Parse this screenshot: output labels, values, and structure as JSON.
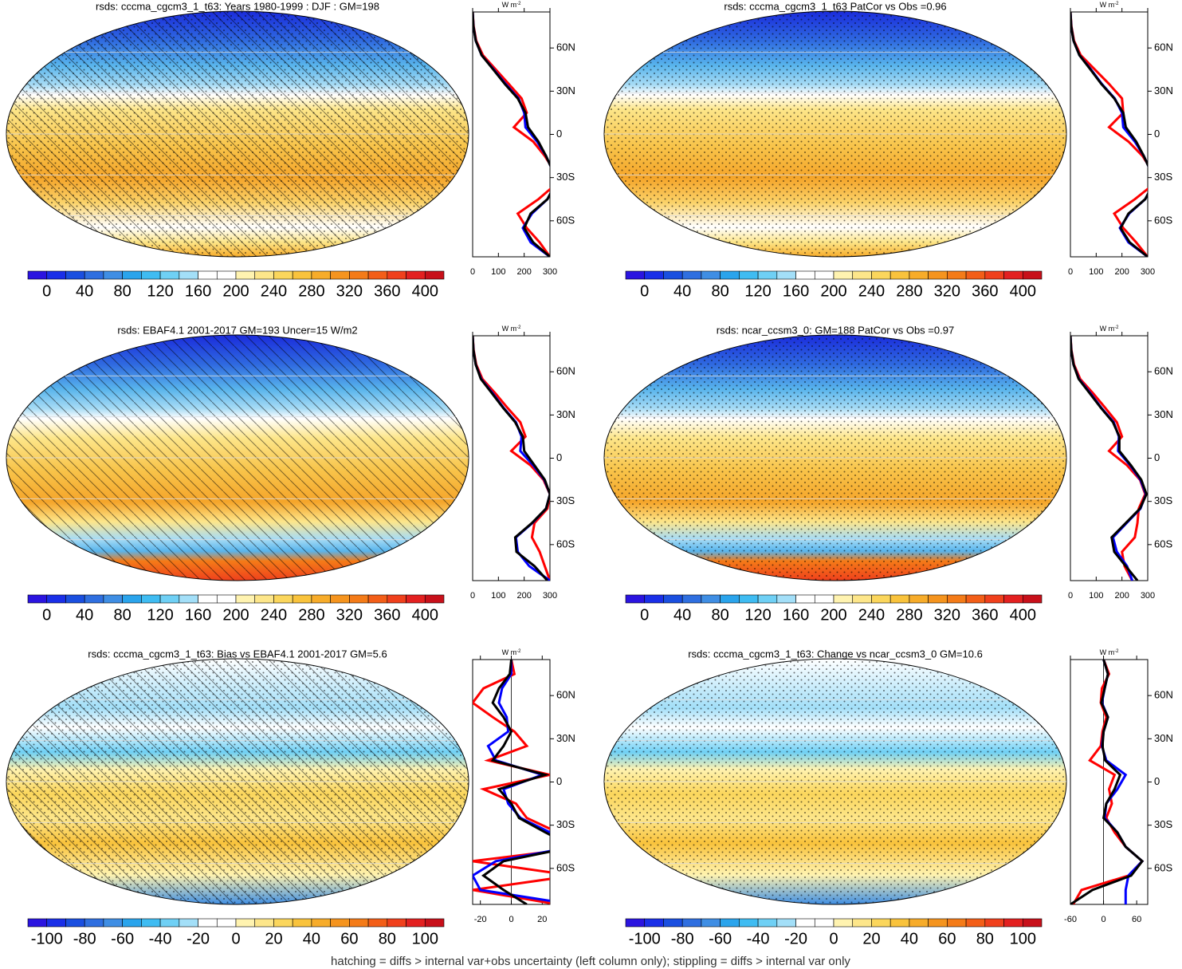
{
  "palette": [
    "#2b14e0",
    "#1a2fe8",
    "#1a4fe0",
    "#2f6fe0",
    "#3f8ee4",
    "#2aa4ec",
    "#3fbcf2",
    "#6fd0f5",
    "#a3dff8",
    "#ffffff",
    "#ffffff",
    "#fff3b0",
    "#fde68a",
    "#fbd65c",
    "#f9c33c",
    "#f7ac2a",
    "#f5941e",
    "#f47b18",
    "#f35e18",
    "#f0401c",
    "#e32020",
    "#c8101a"
  ],
  "footer": "hatching = diffs > internal var+obs uncertainty (left column only); stippling = diffs > internal var only",
  "chart_data": [
    {
      "type": "map-profile",
      "title": "rsds: cccma_cgcm3_1_t63: Years 1980-1999 : DJF : GM=198",
      "clim": [
        -20,
        420
      ],
      "cticks": [
        0,
        40,
        80,
        120,
        160,
        200,
        240,
        280,
        320,
        360,
        400
      ],
      "unit": "W m",
      "unit_power": "-2",
      "xlim": [
        0,
        300
      ],
      "xticks": [
        0,
        100,
        200,
        300
      ],
      "ylim": [
        -85,
        85
      ],
      "yticks": [
        {
          "value": 60,
          "label": "60N"
        },
        {
          "value": 30,
          "label": "30N"
        },
        0,
        {
          "value": -30,
          "label": "30S"
        },
        {
          "value": -60,
          "label": "60S"
        }
      ],
      "lat": [
        85,
        75,
        65,
        55,
        45,
        35,
        25,
        15,
        5,
        -5,
        -15,
        -25,
        -35,
        -45,
        -55,
        -65,
        -75,
        -85
      ],
      "series": [
        {
          "color": "#ff0000",
          "values": [
            0,
            4,
            14,
            40,
            90,
            140,
            190,
            210,
            160,
            235,
            280,
            315,
            320,
            255,
            175,
            210,
            260,
            300
          ]
        },
        {
          "color": "#0000ff",
          "values": [
            0,
            3,
            12,
            35,
            82,
            128,
            178,
            200,
            205,
            250,
            285,
            310,
            320,
            290,
            230,
            195,
            225,
            300
          ]
        },
        {
          "color": "#000000",
          "values": [
            0,
            3,
            12,
            35,
            80,
            125,
            175,
            205,
            215,
            255,
            285,
            310,
            320,
            290,
            225,
            200,
            235,
            300
          ]
        }
      ]
    },
    {
      "type": "map-profile",
      "title": "rsds: cccma_cgcm3_1_t63 PatCor vs Obs =0.96",
      "clim": [
        -20,
        420
      ],
      "cticks": [
        0,
        40,
        80,
        120,
        160,
        200,
        240,
        280,
        320,
        360,
        400
      ],
      "unit": "W m",
      "unit_power": "-2",
      "xlim": [
        0,
        300
      ],
      "xticks": [
        0,
        100,
        200,
        300
      ],
      "ylim": [
        -85,
        85
      ],
      "yticks": [
        {
          "value": 60,
          "label": "60N"
        },
        {
          "value": 30,
          "label": "30N"
        },
        0,
        {
          "value": -30,
          "label": "30S"
        },
        {
          "value": -60,
          "label": "60S"
        }
      ],
      "lat": [
        85,
        75,
        65,
        55,
        45,
        35,
        25,
        15,
        5,
        -5,
        -15,
        -25,
        -35,
        -45,
        -55,
        -65,
        -75,
        -85
      ],
      "series": [
        {
          "color": "#ff0000",
          "values": [
            0,
            4,
            14,
            40,
            95,
            150,
            200,
            205,
            150,
            225,
            280,
            315,
            320,
            250,
            170,
            205,
            255,
            300
          ]
        },
        {
          "color": "#0000ff",
          "values": [
            0,
            3,
            12,
            35,
            80,
            122,
            172,
            200,
            205,
            250,
            285,
            310,
            320,
            290,
            228,
            192,
            225,
            300
          ]
        },
        {
          "color": "#000000",
          "values": [
            0,
            3,
            12,
            35,
            78,
            120,
            170,
            205,
            215,
            255,
            285,
            310,
            320,
            290,
            225,
            195,
            230,
            300
          ]
        }
      ]
    },
    {
      "type": "map-profile",
      "title": "rsds: EBAF4.1 2001-2017 GM=193 Uncer=15 W/m2",
      "clim": [
        -20,
        420
      ],
      "cticks": [
        0,
        40,
        80,
        120,
        160,
        200,
        240,
        280,
        320,
        360,
        400
      ],
      "unit": "W m",
      "unit_power": "-2",
      "xlim": [
        0,
        300
      ],
      "xticks": [
        0,
        100,
        200,
        300
      ],
      "ylim": [
        -85,
        85
      ],
      "yticks": [
        {
          "value": 60,
          "label": "60N"
        },
        {
          "value": 30,
          "label": "30N"
        },
        0,
        {
          "value": -30,
          "label": "30S"
        },
        {
          "value": -60,
          "label": "60S"
        }
      ],
      "lat": [
        85,
        75,
        65,
        55,
        45,
        35,
        25,
        15,
        5,
        -5,
        -15,
        -25,
        -35,
        -45,
        -55,
        -65,
        -75,
        -85
      ],
      "series": [
        {
          "color": "#ff0000",
          "values": [
            0,
            4,
            14,
            38,
            88,
            135,
            185,
            205,
            150,
            225,
            275,
            300,
            290,
            240,
            230,
            260,
            280,
            300
          ]
        },
        {
          "color": "#0000ff",
          "values": [
            0,
            3,
            12,
            33,
            78,
            120,
            168,
            190,
            185,
            235,
            278,
            300,
            285,
            232,
            168,
            175,
            220,
            300
          ]
        },
        {
          "color": "#000000",
          "values": [
            0,
            3,
            12,
            32,
            75,
            118,
            165,
            195,
            200,
            240,
            280,
            300,
            285,
            230,
            165,
            170,
            240,
            290
          ]
        }
      ]
    },
    {
      "type": "map-profile",
      "title": "rsds: ncar_ccsm3_0: GM=188 PatCor vs Obs =0.97",
      "clim": [
        -20,
        420
      ],
      "cticks": [
        0,
        40,
        80,
        120,
        160,
        200,
        240,
        280,
        320,
        360,
        400
      ],
      "unit": "W m",
      "unit_power": "-2",
      "xlim": [
        0,
        300
      ],
      "xticks": [
        0,
        100,
        200,
        300
      ],
      "ylim": [
        -85,
        85
      ],
      "yticks": [
        {
          "value": 60,
          "label": "60N"
        },
        {
          "value": 30,
          "label": "30N"
        },
        0,
        {
          "value": -30,
          "label": "30S"
        },
        {
          "value": -60,
          "label": "60S"
        }
      ],
      "lat": [
        85,
        75,
        65,
        55,
        45,
        35,
        25,
        15,
        5,
        -5,
        -15,
        -25,
        -35,
        -45,
        -55,
        -65,
        -75,
        -85
      ],
      "series": [
        {
          "color": "#ff0000",
          "values": [
            0,
            4,
            14,
            38,
            88,
            135,
            180,
            200,
            150,
            220,
            270,
            290,
            265,
            260,
            250,
            200,
            210,
            240
          ]
        },
        {
          "color": "#0000ff",
          "values": [
            0,
            3,
            12,
            33,
            78,
            120,
            168,
            188,
            185,
            232,
            272,
            293,
            272,
            218,
            165,
            180,
            220,
            240
          ]
        },
        {
          "color": "#000000",
          "values": [
            0,
            3,
            12,
            32,
            75,
            118,
            165,
            190,
            190,
            235,
            275,
            295,
            270,
            215,
            160,
            170,
            215,
            260
          ]
        }
      ]
    },
    {
      "type": "map-profile",
      "title": "rsds: cccma_cgcm3_1_t63: Bias vs EBAF4.1 2001-2017 GM=5.6",
      "clim": [
        -110,
        110
      ],
      "cticks": [
        -100,
        -80,
        -60,
        -40,
        -20,
        0,
        20,
        40,
        60,
        80,
        100
      ],
      "unit": "W m",
      "unit_power": "-2",
      "xlim": [
        -25,
        25
      ],
      "xticks": [
        -20,
        0,
        20
      ],
      "ylim": [
        -85,
        85
      ],
      "yticks": [
        {
          "value": 60,
          "label": "60N"
        },
        {
          "value": 30,
          "label": "30N"
        },
        0,
        {
          "value": -30,
          "label": "30S"
        },
        {
          "value": -60,
          "label": "60S"
        }
      ],
      "lat": [
        85,
        75,
        65,
        55,
        45,
        35,
        25,
        15,
        5,
        -5,
        -15,
        -25,
        -35,
        -45,
        -55,
        -65,
        -75,
        -85
      ],
      "series": [
        {
          "color": "#ff0000",
          "values": [
            0,
            2,
            -18,
            -25,
            -12,
            2,
            10,
            -15,
            25,
            -18,
            3,
            10,
            30,
            50,
            -25,
            40,
            -25,
            30
          ]
        },
        {
          "color": "#0000ff",
          "values": [
            0,
            0,
            -6,
            -8,
            -3,
            -2,
            -15,
            -10,
            20,
            -5,
            -2,
            6,
            25,
            40,
            -10,
            -25,
            -20,
            40
          ]
        },
        {
          "color": "#000000",
          "values": [
            0,
            -1,
            -8,
            -12,
            -5,
            0,
            -5,
            -12,
            22,
            -8,
            0,
            5,
            22,
            40,
            -5,
            -18,
            -5,
            10
          ]
        }
      ]
    },
    {
      "type": "map-profile",
      "title": "rsds: cccma_cgcm3_1_t63: Change vs ncar_ccsm3_0 GM=10.6",
      "clim": [
        -110,
        110
      ],
      "cticks": [
        -100,
        -80,
        -60,
        -40,
        -20,
        0,
        20,
        40,
        60,
        80,
        100
      ],
      "unit": "W m",
      "unit_power": "-2",
      "xlim": [
        -60,
        80
      ],
      "xticks": [
        -60,
        0,
        60
      ],
      "ylim": [
        -85,
        85
      ],
      "yticks": [
        {
          "value": 60,
          "label": "60N"
        },
        {
          "value": 30,
          "label": "30N"
        },
        0,
        {
          "value": -30,
          "label": "30S"
        },
        {
          "value": -60,
          "label": "60S"
        }
      ],
      "lat": [
        85,
        75,
        65,
        55,
        45,
        35,
        25,
        15,
        5,
        -5,
        -15,
        -25,
        -35,
        -45,
        -55,
        -65,
        -75,
        -85
      ],
      "series": [
        {
          "color": "#ff0000",
          "values": [
            0,
            10,
            -3,
            -5,
            5,
            -2,
            -5,
            -25,
            20,
            10,
            15,
            5,
            20,
            40,
            70,
            45,
            -40,
            -55
          ]
        },
        {
          "color": "#0000ff",
          "values": [
            0,
            8,
            2,
            -3,
            8,
            0,
            -3,
            5,
            40,
            25,
            5,
            2,
            25,
            40,
            70,
            45,
            40,
            40
          ]
        },
        {
          "color": "#000000",
          "values": [
            0,
            8,
            2,
            -4,
            8,
            0,
            -2,
            3,
            30,
            20,
            5,
            0,
            25,
            40,
            70,
            50,
            -20,
            -60
          ]
        }
      ]
    }
  ]
}
